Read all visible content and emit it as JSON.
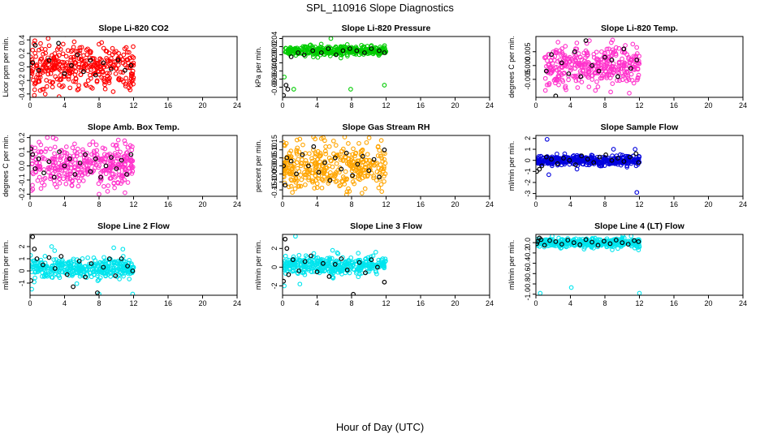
{
  "figure": {
    "title": "SPL_110916  Slope Diagnostics",
    "xlabel": "Hour of Day (UTC)"
  },
  "chart_data": [
    {
      "type": "scatter",
      "title": "Slope Li-820 CO2",
      "ylabel": "Licor ppm per min.",
      "xlim": [
        0,
        24
      ],
      "ylim": [
        -0.45,
        0.45
      ],
      "yticks": [
        -0.4,
        -0.2,
        0.0,
        0.2,
        0.4
      ],
      "ytick_labels": [
        "-0.4",
        "-0.2",
        "0.0",
        "0.2",
        "0.4"
      ],
      "xticks": [
        0,
        4,
        8,
        12,
        16,
        20,
        24
      ],
      "color": "#ff0000",
      "data_range": [
        0,
        12
      ],
      "spread": 0.16,
      "center": 0.0,
      "black_points": [
        [
          0.3,
          0.06
        ],
        [
          0.6,
          0.32
        ],
        [
          1.0,
          -0.05
        ],
        [
          2.2,
          0.1
        ],
        [
          3.3,
          0.35
        ],
        [
          4.0,
          -0.1
        ],
        [
          4.8,
          0.02
        ],
        [
          5.5,
          0.18
        ],
        [
          6.2,
          -0.07
        ],
        [
          7.0,
          0.1
        ],
        [
          7.6,
          -0.12
        ],
        [
          8.5,
          0.06
        ],
        [
          9.4,
          -0.03
        ],
        [
          10.2,
          0.1
        ],
        [
          11.0,
          -0.05
        ],
        [
          11.7,
          0.02
        ]
      ],
      "outliers": [
        [
          0.5,
          -0.42
        ],
        [
          2.1,
          0.42
        ],
        [
          8.3,
          0.36
        ],
        [
          11.6,
          -0.34
        ]
      ]
    },
    {
      "type": "scatter",
      "title": "Slope Li-820 Pressure",
      "ylabel": "kPa per min.",
      "xlim": [
        0,
        24
      ],
      "ylim": [
        -0.105,
        0.045
      ],
      "yticks": [
        -0.08,
        -0.06,
        -0.04,
        -0.02,
        0.0,
        0.02,
        0.04
      ],
      "ytick_labels": [
        "-0.08",
        "-0.06",
        "-0.04",
        "-0.02",
        "0.00",
        "0.02",
        "0.04"
      ],
      "xticks": [
        0,
        4,
        8,
        12,
        16,
        20,
        24
      ],
      "color": "#00cc00",
      "data_range": [
        0.3,
        12
      ],
      "spread": 0.006,
      "center": 0.01,
      "black_points": [
        [
          0.1,
          -0.1
        ],
        [
          0.4,
          -0.075
        ],
        [
          0.6,
          -0.085
        ],
        [
          1.0,
          -0.005
        ],
        [
          1.8,
          0.005
        ],
        [
          2.5,
          0.0
        ],
        [
          3.5,
          0.01
        ],
        [
          4.5,
          0.005
        ],
        [
          5.3,
          0.015
        ],
        [
          6.2,
          0.0
        ],
        [
          7.0,
          0.01
        ],
        [
          7.8,
          0.015
        ],
        [
          8.6,
          0.01
        ],
        [
          9.5,
          0.005
        ],
        [
          10.3,
          0.015
        ],
        [
          11.2,
          0.01
        ],
        [
          11.8,
          0.005
        ]
      ],
      "outliers": [
        [
          1.3,
          -0.085
        ],
        [
          5.6,
          0.04
        ],
        [
          7.9,
          -0.085
        ],
        [
          11.8,
          -0.075
        ],
        [
          0.2,
          -0.055
        ]
      ]
    },
    {
      "type": "scatter",
      "title": "Slope Li-820 Temp.",
      "ylabel": "degrees C per min.",
      "xlim": [
        0,
        24
      ],
      "ylim": [
        -0.0115,
        0.0105
      ],
      "yticks": [
        -0.005,
        0.0,
        0.005
      ],
      "ytick_labels": [
        "-0.005",
        "0.000",
        "0.005"
      ],
      "xticks": [
        0,
        4,
        8,
        12,
        16,
        20,
        24
      ],
      "color": "#ff33cc",
      "data_range": [
        1,
        12
      ],
      "spread": 0.0035,
      "center": 0.0,
      "black_points": [
        [
          1.2,
          -0.002
        ],
        [
          1.8,
          0.004
        ],
        [
          2.3,
          -0.011
        ],
        [
          3.0,
          0.001
        ],
        [
          3.8,
          -0.003
        ],
        [
          4.5,
          0.005
        ],
        [
          5.2,
          -0.004
        ],
        [
          5.8,
          0.009
        ],
        [
          6.5,
          0.0
        ],
        [
          7.3,
          -0.002
        ],
        [
          8.0,
          0.003
        ],
        [
          8.8,
          0.002
        ],
        [
          9.5,
          -0.004
        ],
        [
          10.2,
          0.006
        ],
        [
          11.0,
          -0.001
        ],
        [
          11.7,
          0.002
        ]
      ],
      "outliers": [
        [
          1.1,
          -0.009
        ],
        [
          1.3,
          -0.007
        ],
        [
          5.9,
          0.008
        ],
        [
          6.2,
          0.009
        ],
        [
          6.9,
          -0.009
        ]
      ]
    },
    {
      "type": "scatter",
      "title": "Slope Amb. Box Temp.",
      "ylabel": "degrees C per min.",
      "xlim": [
        0,
        24
      ],
      "ylim": [
        -0.215,
        0.215
      ],
      "yticks": [
        -0.2,
        -0.1,
        0.0,
        0.1,
        0.2
      ],
      "ytick_labels": [
        "-0.2",
        "-0.1",
        "0.0",
        "0.1",
        "0.2"
      ],
      "xticks": [
        0,
        4,
        8,
        12,
        16,
        20,
        24
      ],
      "color": "#ff33cc",
      "data_range": [
        0,
        12
      ],
      "spread": 0.075,
      "center": 0.0,
      "black_points": [
        [
          0.1,
          0.12
        ],
        [
          0.3,
          0.08
        ],
        [
          0.6,
          -0.02
        ],
        [
          1.0,
          0.05
        ],
        [
          1.6,
          -0.05
        ],
        [
          2.2,
          0.03
        ],
        [
          2.8,
          -0.08
        ],
        [
          3.4,
          0.1
        ],
        [
          4.0,
          0.0
        ],
        [
          4.6,
          0.05
        ],
        [
          5.2,
          -0.06
        ],
        [
          5.8,
          0.02
        ],
        [
          6.4,
          0.08
        ],
        [
          7.0,
          -0.04
        ],
        [
          7.6,
          0.05
        ],
        [
          8.2,
          -0.08
        ],
        [
          8.8,
          0.0
        ],
        [
          9.4,
          0.06
        ],
        [
          10.0,
          -0.02
        ],
        [
          10.6,
          0.04
        ],
        [
          11.2,
          -0.06
        ],
        [
          11.7,
          0.08
        ]
      ],
      "outliers": [
        [
          2.0,
          0.2
        ],
        [
          3.0,
          0.19
        ],
        [
          11.0,
          -0.19
        ],
        [
          8.0,
          -0.2
        ]
      ]
    },
    {
      "type": "scatter",
      "title": "Slope Gas Stream RH",
      "ylabel": "percent per min.",
      "xlim": [
        0,
        24
      ],
      "ylim": [
        -0.19,
        0.19
      ],
      "yticks": [
        -0.15,
        -0.1,
        -0.05,
        0.0,
        0.05,
        0.1,
        0.15
      ],
      "ytick_labels": [
        "-0.15",
        "-0.10",
        "-0.05",
        "0.00",
        "0.05",
        "0.10",
        "0.15"
      ],
      "xticks": [
        0,
        4,
        8,
        12,
        16,
        20,
        24
      ],
      "color": "#ffa500",
      "data_range": [
        0,
        12
      ],
      "spread": 0.075,
      "center": 0.0,
      "black_points": [
        [
          0.1,
          0.0
        ],
        [
          0.3,
          -0.12
        ],
        [
          0.5,
          0.05
        ],
        [
          1.0,
          0.03
        ],
        [
          1.6,
          -0.05
        ],
        [
          2.3,
          0.07
        ],
        [
          3.0,
          0.0
        ],
        [
          3.6,
          0.12
        ],
        [
          4.2,
          -0.04
        ],
        [
          4.9,
          0.02
        ],
        [
          5.5,
          -0.09
        ],
        [
          6.1,
          0.05
        ],
        [
          6.8,
          -0.02
        ],
        [
          7.4,
          0.08
        ],
        [
          8.1,
          -0.06
        ],
        [
          8.7,
          0.01
        ],
        [
          9.3,
          0.06
        ],
        [
          10.0,
          -0.03
        ],
        [
          10.6,
          0.04
        ],
        [
          11.2,
          -0.07
        ],
        [
          11.8,
          0.1
        ]
      ],
      "outliers": [
        [
          4.5,
          0.17
        ],
        [
          7.2,
          0.18
        ],
        [
          9.2,
          -0.17
        ],
        [
          11.5,
          -0.16
        ]
      ]
    },
    {
      "type": "scatter",
      "title": "Slope Sample Flow",
      "ylabel": "ml/min per min.",
      "xlim": [
        0,
        24
      ],
      "ylim": [
        -3.25,
        2.25
      ],
      "yticks": [
        -3,
        -2,
        -1,
        0,
        1,
        2
      ],
      "ytick_labels": [
        "-3",
        "-2",
        "-1",
        "0",
        "1",
        "2"
      ],
      "xticks": [
        0,
        4,
        8,
        12,
        16,
        20,
        24
      ],
      "color": "#0000dd",
      "data_range": [
        0,
        12
      ],
      "spread": 0.22,
      "center": 0.0,
      "black_points": [
        [
          0.1,
          -1.0
        ],
        [
          0.4,
          -0.8
        ],
        [
          0.7,
          -0.5
        ],
        [
          1.2,
          0.3
        ],
        [
          1.8,
          0.1
        ],
        [
          2.5,
          -0.3
        ],
        [
          3.2,
          0.2
        ],
        [
          3.9,
          0.0
        ],
        [
          4.6,
          -0.4
        ],
        [
          5.3,
          0.4
        ],
        [
          6.0,
          0.1
        ],
        [
          6.7,
          -0.2
        ],
        [
          7.4,
          0.3
        ],
        [
          8.1,
          0.5
        ],
        [
          8.8,
          0.0
        ],
        [
          9.5,
          0.2
        ],
        [
          10.2,
          -0.1
        ],
        [
          10.9,
          0.3
        ],
        [
          11.6,
          0.6
        ],
        [
          11.9,
          -0.2
        ]
      ],
      "outliers": [
        [
          1.3,
          1.9
        ],
        [
          1.5,
          -1.3
        ],
        [
          9.0,
          1.0
        ],
        [
          11.7,
          -2.9
        ],
        [
          11.5,
          1.0
        ]
      ]
    },
    {
      "type": "scatter",
      "title": "Slope Line 2 Flow",
      "ylabel": "ml/min per min.",
      "xlim": [
        0,
        24
      ],
      "ylim": [
        -2.0,
        3.0
      ],
      "yticks": [
        -1,
        0,
        1,
        2
      ],
      "ytick_labels": [
        "-1",
        "0",
        "1",
        "2"
      ],
      "xticks": [
        0,
        4,
        8,
        12,
        16,
        20,
        24
      ],
      "color": "#00e5ee",
      "data_range": [
        0,
        12
      ],
      "spread": 0.4,
      "center": 0.2,
      "black_points": [
        [
          0.1,
          -0.8
        ],
        [
          0.3,
          2.8
        ],
        [
          0.5,
          1.8
        ],
        [
          0.8,
          1.0
        ],
        [
          1.5,
          0.5
        ],
        [
          2.2,
          1.1
        ],
        [
          2.9,
          0.2
        ],
        [
          3.6,
          1.2
        ],
        [
          4.3,
          -0.3
        ],
        [
          5.0,
          -1.3
        ],
        [
          5.7,
          0.8
        ],
        [
          6.4,
          -0.5
        ],
        [
          7.1,
          0.6
        ],
        [
          7.8,
          -1.8
        ],
        [
          8.5,
          0.3
        ],
        [
          9.2,
          1.0
        ],
        [
          9.9,
          -0.4
        ],
        [
          10.6,
          1.0
        ],
        [
          11.3,
          0.4
        ],
        [
          11.9,
          0.0
        ]
      ],
      "outliers": [
        [
          0.2,
          -1.5
        ],
        [
          2.5,
          2.0
        ],
        [
          8.0,
          -1.9
        ],
        [
          9.7,
          1.9
        ],
        [
          11.9,
          -1.9
        ]
      ]
    },
    {
      "type": "scatter",
      "title": "Slope Line 3 Flow",
      "ylabel": "ml/min per min.",
      "xlim": [
        0,
        24
      ],
      "ylim": [
        -3.0,
        3.5
      ],
      "yticks": [
        -2,
        0,
        2
      ],
      "ytick_labels": [
        "-2",
        "0",
        "2"
      ],
      "xticks": [
        0,
        4,
        8,
        12,
        16,
        20,
        24
      ],
      "color": "#00e5ee",
      "data_range": [
        0,
        12
      ],
      "spread": 0.45,
      "center": 0.2,
      "black_points": [
        [
          0.1,
          -1.5
        ],
        [
          0.3,
          3.0
        ],
        [
          0.5,
          2.0
        ],
        [
          0.7,
          -0.8
        ],
        [
          1.2,
          0.8
        ],
        [
          1.9,
          -0.4
        ],
        [
          2.6,
          0.6
        ],
        [
          3.3,
          1.2
        ],
        [
          4.0,
          -0.5
        ],
        [
          4.7,
          0.4
        ],
        [
          5.4,
          -1.0
        ],
        [
          6.1,
          0.3
        ],
        [
          6.8,
          0.9
        ],
        [
          7.5,
          -0.3
        ],
        [
          8.2,
          -2.9
        ],
        [
          8.9,
          0.5
        ],
        [
          9.6,
          -0.6
        ],
        [
          10.3,
          0.8
        ],
        [
          11.0,
          0.0
        ],
        [
          11.8,
          -1.6
        ]
      ],
      "outliers": [
        [
          0.2,
          -2.0
        ],
        [
          1.5,
          3.3
        ],
        [
          2.0,
          -1.8
        ],
        [
          5.8,
          1.8
        ],
        [
          10.8,
          1.6
        ]
      ]
    },
    {
      "type": "scatter",
      "title": "Slope Line 4 (LT) Flow",
      "ylabel": "ml/min per min.",
      "xlim": [
        0,
        24
      ],
      "ylim": [
        -1.02,
        0.16
      ],
      "yticks": [
        -1.0,
        -0.8,
        -0.6,
        -0.4,
        -0.2,
        0.0
      ],
      "ytick_labels": [
        "-1.0",
        "-0.8",
        "-0.6",
        "-0.4",
        "-0.2",
        "0.0"
      ],
      "xticks": [
        0,
        4,
        8,
        12,
        16,
        20,
        24
      ],
      "color": "#00e5ee",
      "data_range": [
        0,
        12
      ],
      "spread": 0.045,
      "center": 0.0,
      "black_points": [
        [
          0.1,
          -0.02
        ],
        [
          0.2,
          0.02
        ],
        [
          0.4,
          0.09
        ],
        [
          0.6,
          0.06
        ],
        [
          1.0,
          -0.05
        ],
        [
          1.6,
          0.04
        ],
        [
          2.3,
          0.02
        ],
        [
          3.0,
          -0.03
        ],
        [
          3.7,
          0.05
        ],
        [
          4.4,
          0.0
        ],
        [
          5.1,
          -0.04
        ],
        [
          5.8,
          0.06
        ],
        [
          6.5,
          0.01
        ],
        [
          7.2,
          -0.05
        ],
        [
          7.9,
          0.03
        ],
        [
          8.6,
          -0.02
        ],
        [
          9.3,
          0.05
        ],
        [
          10.0,
          0.0
        ],
        [
          10.7,
          -0.03
        ],
        [
          11.4,
          0.04
        ],
        [
          11.9,
          0.02
        ]
      ],
      "outliers": [
        [
          0.5,
          -0.98
        ],
        [
          4.1,
          -0.87
        ],
        [
          12.0,
          -0.98
        ],
        [
          11.9,
          -0.14
        ]
      ]
    }
  ]
}
